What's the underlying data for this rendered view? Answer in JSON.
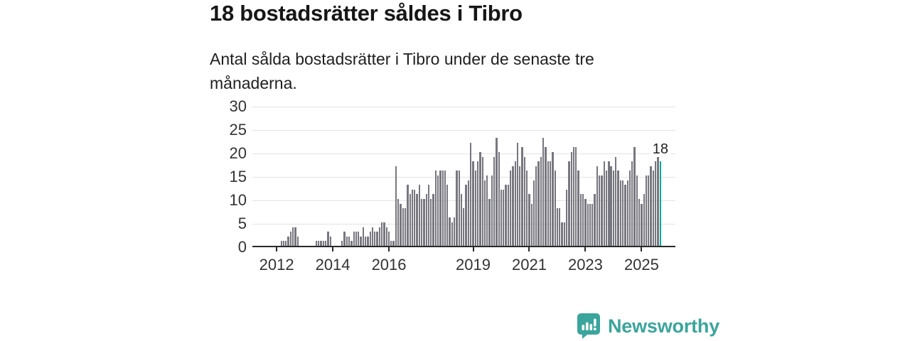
{
  "header": {
    "title": "18 bostadsrätter såldes i Tibro",
    "subtitle": "Antal sålda bostadsrätter i Tibro under de senaste tre månaderna."
  },
  "footer": {
    "brand": "Newsworthy",
    "brand_color": "#3aa59c"
  },
  "chart_data": {
    "type": "bar",
    "title": "18 bostadsrätter såldes i Tibro",
    "subtitle": "Antal sålda bostadsrätter i Tibro under de senaste tre månaderna.",
    "x_start": "2011-03",
    "frequency": "monthly",
    "ylim": [
      0,
      30
    ],
    "yticks": [
      0,
      5,
      10,
      15,
      20,
      25,
      30
    ],
    "xticks": [
      {
        "label": "2012",
        "month_index": 10
      },
      {
        "label": "2014",
        "month_index": 34
      },
      {
        "label": "2016",
        "month_index": 58
      },
      {
        "label": "2019",
        "month_index": 94
      },
      {
        "label": "2021",
        "month_index": 118
      },
      {
        "label": "2023",
        "month_index": 142
      },
      {
        "label": "2025",
        "month_index": 166
      }
    ],
    "grid": true,
    "legend": "none",
    "bar_color": "#77777f",
    "highlight_color": "#00a69b",
    "grid_color": "#e3e3e3",
    "axis_color": "#2a2a2a",
    "highlight_last": true,
    "annotation": "18",
    "values": [
      0,
      0,
      0,
      0,
      0,
      0,
      0,
      0,
      0,
      0,
      0,
      0,
      1,
      1,
      1,
      2,
      3,
      4,
      4,
      2,
      0,
      0,
      0,
      0,
      0,
      0,
      0,
      1,
      1,
      1,
      1,
      1,
      3,
      2,
      0,
      0,
      0,
      0,
      1,
      3,
      2,
      2,
      1,
      3,
      3,
      3,
      2,
      4,
      2,
      2,
      3,
      4,
      3,
      3,
      4,
      5,
      5,
      4,
      3,
      1,
      1,
      17,
      10,
      9,
      8,
      8,
      13,
      11,
      12,
      12,
      11,
      13,
      10,
      10,
      11,
      13,
      10,
      11,
      16,
      15,
      16,
      16,
      16,
      13,
      6,
      5,
      6,
      16,
      16,
      11,
      8,
      13,
      14,
      22,
      18,
      16,
      18,
      20,
      19,
      14,
      15,
      10,
      15,
      19,
      23,
      20,
      12,
      12,
      13,
      13,
      16,
      17,
      18,
      22,
      17,
      21,
      19,
      16,
      11,
      9,
      14,
      17,
      18,
      19,
      23,
      21,
      18,
      18,
      20,
      16,
      8,
      8,
      5,
      5,
      12,
      18,
      20,
      21,
      21,
      16,
      11,
      11,
      10,
      9,
      9,
      9,
      11,
      17,
      15,
      15,
      18,
      16,
      18,
      17,
      16,
      19,
      16,
      14,
      14,
      13,
      14,
      16,
      18,
      21,
      15,
      10,
      9,
      11,
      15,
      15,
      17,
      16,
      18,
      19,
      18
    ]
  }
}
